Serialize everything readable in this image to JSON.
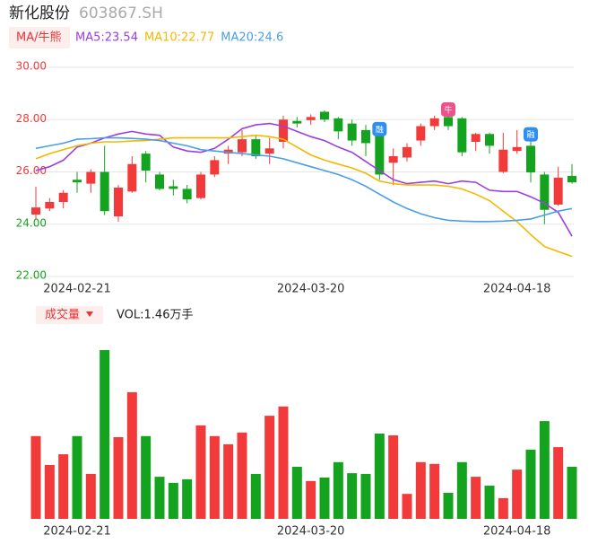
{
  "chart_data": {
    "type": "candlestick",
    "title": "新化股份",
    "subtitle": "603867.SH",
    "legend_title": "MA/牛熊",
    "categories": [
      null,
      null,
      null,
      "2024-02-21",
      null,
      null,
      null,
      null,
      null,
      null,
      null,
      null,
      null,
      null,
      null,
      null,
      null,
      null,
      null,
      null,
      "2024-03-20",
      null,
      null,
      null,
      null,
      null,
      null,
      null,
      null,
      null,
      null,
      null,
      null,
      null,
      null,
      "2024-04-18",
      null,
      null,
      null,
      null
    ],
    "open": [
      24.37,
      24.6,
      24.85,
      25.7,
      25.55,
      26.0,
      24.3,
      25.25,
      26.7,
      25.9,
      25.45,
      25.35,
      25.0,
      25.9,
      26.7,
      26.75,
      27.25,
      26.7,
      27.15,
      27.95,
      27.98,
      28.3,
      28.05,
      27.85,
      27.6,
      27.45,
      26.35,
      26.55,
      27.2,
      27.75,
      28.1,
      28.05,
      27.15,
      27.45,
      26.0,
      26.8,
      27.0,
      25.9,
      24.75,
      25.85
    ],
    "close": [
      24.64,
      24.85,
      25.2,
      25.6,
      26.0,
      24.5,
      25.4,
      26.3,
      26.05,
      25.35,
      25.35,
      24.95,
      25.9,
      26.45,
      26.85,
      27.25,
      26.6,
      26.9,
      28.0,
      27.85,
      28.1,
      28.0,
      27.55,
      27.2,
      27.1,
      25.9,
      26.6,
      26.95,
      27.75,
      28.05,
      27.75,
      26.75,
      27.45,
      27.0,
      26.85,
      26.95,
      25.98,
      24.55,
      25.78,
      25.6
    ],
    "high": [
      25.43,
      25.0,
      25.3,
      26.0,
      26.1,
      27.0,
      25.5,
      26.6,
      26.8,
      26.0,
      25.7,
      25.5,
      26.0,
      26.6,
      27.0,
      27.6,
      27.4,
      27.3,
      28.15,
      28.1,
      28.2,
      28.35,
      28.1,
      28.0,
      27.8,
      27.5,
      26.9,
      27.1,
      27.85,
      28.15,
      28.25,
      28.1,
      27.5,
      27.5,
      27.5,
      27.6,
      27.3,
      26.0,
      26.2,
      26.3
    ],
    "low": [
      24.2,
      24.5,
      24.6,
      25.2,
      25.2,
      24.35,
      24.1,
      25.2,
      25.6,
      25.3,
      25.1,
      24.8,
      24.95,
      25.8,
      26.3,
      26.6,
      26.5,
      26.3,
      26.9,
      27.7,
      27.8,
      27.9,
      27.25,
      27.0,
      26.6,
      25.7,
      25.5,
      26.4,
      27.0,
      27.6,
      27.6,
      26.6,
      26.8,
      26.7,
      25.95,
      26.7,
      25.6,
      24.0,
      24.7,
      25.55
    ],
    "up_color": "#f23a3a",
    "down_color": "#14a31e",
    "series": [
      {
        "name": "MA5:23.54",
        "color": "#9b3fe0",
        "values": [
          26.05,
          26.2,
          26.45,
          26.95,
          27.1,
          27.3,
          27.45,
          27.55,
          27.45,
          27.4,
          26.95,
          26.8,
          26.75,
          26.9,
          27.25,
          27.65,
          27.8,
          27.85,
          27.75,
          27.55,
          27.35,
          27.2,
          26.95,
          26.75,
          26.4,
          26.05,
          25.7,
          25.55,
          25.6,
          25.65,
          25.55,
          25.65,
          25.6,
          25.3,
          25.25,
          25.25,
          25.05,
          24.8,
          24.45,
          23.54
        ]
      },
      {
        "name": "MA10:22.77",
        "color": "#f5b800",
        "values": [
          26.5,
          26.7,
          26.85,
          27.0,
          27.1,
          27.15,
          27.15,
          27.18,
          27.2,
          27.25,
          27.3,
          27.3,
          27.3,
          27.3,
          27.3,
          27.35,
          27.4,
          27.35,
          27.25,
          26.95,
          26.65,
          26.45,
          26.3,
          26.15,
          25.95,
          25.65,
          25.55,
          25.5,
          25.5,
          25.5,
          25.45,
          25.35,
          25.15,
          24.9,
          24.5,
          24.1,
          23.6,
          23.15,
          22.95,
          22.77
        ]
      },
      {
        "name": "MA20:24.6",
        "color": "#4a9ee8",
        "values": [
          26.9,
          27.0,
          27.1,
          27.25,
          27.27,
          27.3,
          27.3,
          27.28,
          27.25,
          27.2,
          27.1,
          27.0,
          26.85,
          26.8,
          26.75,
          26.7,
          26.65,
          26.6,
          26.5,
          26.35,
          26.2,
          26.05,
          25.9,
          25.7,
          25.45,
          25.15,
          24.85,
          24.6,
          24.4,
          24.25,
          24.15,
          24.12,
          24.1,
          24.1,
          24.12,
          24.15,
          24.2,
          24.35,
          24.5,
          24.6
        ]
      }
    ],
    "ylim": [
      22,
      30
    ],
    "yticks": [
      {
        "value": 22,
        "label": "22.00"
      },
      {
        "value": 24,
        "label": "24.00"
      },
      {
        "value": 26,
        "label": "26.00"
      },
      {
        "value": 28,
        "label": "28.00"
      },
      {
        "value": 30,
        "label": "30.00"
      }
    ],
    "ytick_colors": [
      "#14a31e",
      "#14a31e",
      "#f23a3a",
      "#f23a3a",
      "#f23a3a"
    ],
    "grid": true,
    "markers": [
      {
        "index": 25,
        "label": "融",
        "color": "#2f8ff0"
      },
      {
        "index": 30,
        "label": "牛",
        "color": "#f0508a"
      },
      {
        "index": 36,
        "label": "融",
        "color": "#2f8ff0"
      }
    ],
    "volume": {
      "title": "成交量",
      "label": "VOL:1.46万手",
      "values": [
        2.32,
        1.51,
        1.81,
        2.32,
        1.26,
        4.73,
        2.29,
        3.55,
        2.32,
        1.18,
        1.01,
        1.11,
        2.62,
        2.32,
        2.09,
        2.42,
        1.26,
        2.89,
        3.15,
        1.46,
        1.06,
        1.16,
        1.59,
        1.28,
        1.26,
        2.39,
        2.34,
        0.7,
        1.59,
        1.54,
        0.73,
        1.59,
        1.18,
        0.93,
        0.58,
        1.38,
        1.94,
        2.74,
        2.01,
        1.46
      ]
    }
  }
}
